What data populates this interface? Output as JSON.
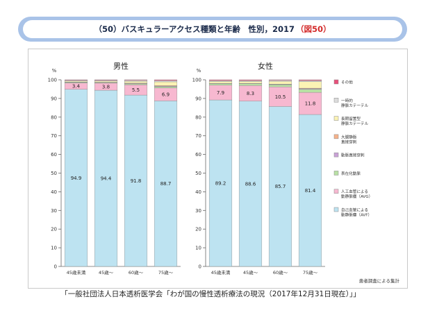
{
  "title": {
    "text": "（50）バスキュラーアクセス種類と年齢　性別，2017",
    "ref": "（図50）"
  },
  "source_note": "「一般社団法人日本透析医学会「わが国の慢性透析療法の現況（2017年12月31日現在）」」",
  "footnote": "患者調査による集計",
  "colors": {
    "other": "#e8507a",
    "temp_catheter": "#dcdcdc",
    "long_catheter": "#fbf3b4",
    "superficial_artery": "#f6b28a",
    "direct_puncture": "#c9a2d6",
    "transposition": "#b8e0a4",
    "avg": "#f7b8d0",
    "avf": "#bde3f1"
  },
  "chart_data": {
    "type": "bar",
    "stacked": true,
    "ylabel": "%",
    "ylim": [
      0,
      100
    ],
    "yticks": [
      0,
      10,
      20,
      30,
      40,
      50,
      60,
      70,
      80,
      90,
      100
    ],
    "legend_position": "right",
    "legend": [
      {
        "key": "other",
        "label": "その他"
      },
      {
        "key": "temp_catheter",
        "label": "一時的\n静脈カテーテル"
      },
      {
        "key": "long_catheter",
        "label": "長期留置型\n静脈カテーテル"
      },
      {
        "key": "superficial_artery",
        "label": "大腿静脈\n直接穿刺"
      },
      {
        "key": "direct_puncture",
        "label": "動脈直接穿刺"
      },
      {
        "key": "transposition",
        "label": "表在化動脈"
      },
      {
        "key": "avg",
        "label": "人工血管による\n動静脈瘻（AVG）"
      },
      {
        "key": "avf",
        "label": "自己血管による\n動静脈瘻（AVF）"
      }
    ],
    "panels": [
      {
        "title": "男性",
        "categories": [
          "45歳未満",
          "45歳〜",
          "60歳〜",
          "75歳〜"
        ],
        "series": [
          {
            "key": "avf",
            "values": [
              94.9,
              94.4,
              91.8,
              88.7
            ],
            "show_labels": true
          },
          {
            "key": "avg",
            "values": [
              3.4,
              3.8,
              5.5,
              6.9
            ],
            "show_labels": true
          },
          {
            "key": "transposition",
            "values": [
              0.3,
              0.3,
              0.5,
              0.7
            ]
          },
          {
            "key": "direct_puncture",
            "values": [
              0.1,
              0.1,
              0.2,
              0.3
            ]
          },
          {
            "key": "superficial_artery",
            "values": [
              0.1,
              0.1,
              0.2,
              0.3
            ]
          },
          {
            "key": "long_catheter",
            "values": [
              0.5,
              0.6,
              1.0,
              2.0
            ]
          },
          {
            "key": "temp_catheter",
            "values": [
              0.4,
              0.4,
              0.5,
              0.7
            ]
          },
          {
            "key": "other",
            "values": [
              0.3,
              0.3,
              0.3,
              0.4
            ]
          }
        ]
      },
      {
        "title": "女性",
        "categories": [
          "45歳未満",
          "45歳〜",
          "60歳〜",
          "75歳〜"
        ],
        "series": [
          {
            "key": "avf",
            "values": [
              89.2,
              88.6,
              85.7,
              81.4
            ],
            "show_labels": true
          },
          {
            "key": "avg",
            "values": [
              7.9,
              8.3,
              10.5,
              11.8
            ],
            "show_labels": true
          },
          {
            "key": "transposition",
            "values": [
              0.8,
              1.0,
              1.1,
              1.7
            ]
          },
          {
            "key": "direct_puncture",
            "values": [
              0.1,
              0.1,
              0.2,
              0.3
            ]
          },
          {
            "key": "superficial_artery",
            "values": [
              0.1,
              0.1,
              0.2,
              0.3
            ]
          },
          {
            "key": "long_catheter",
            "values": [
              1.0,
              1.0,
              1.5,
              3.5
            ]
          },
          {
            "key": "temp_catheter",
            "values": [
              0.5,
              0.5,
              0.5,
              0.6
            ]
          },
          {
            "key": "other",
            "values": [
              0.4,
              0.4,
              0.3,
              0.4
            ]
          }
        ]
      }
    ]
  }
}
